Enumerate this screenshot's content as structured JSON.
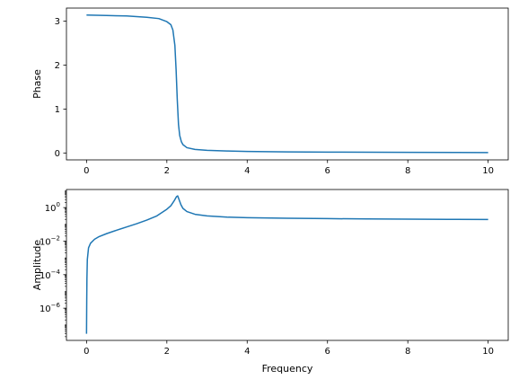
{
  "chart_data": [
    {
      "type": "line",
      "xlabel": "",
      "ylabel": "Phase",
      "xlim": [
        -0.5,
        10.5
      ],
      "ylim": [
        -0.157,
        3.299
      ],
      "yscale": "linear",
      "grid": false,
      "color": "#1f77b4",
      "xticks": [
        0,
        2,
        4,
        6,
        8,
        10
      ],
      "xtick_labels": [
        "0",
        "2",
        "4",
        "6",
        "8",
        "10"
      ],
      "yticks": [
        0,
        1,
        2,
        3
      ],
      "ytick_labels": [
        "0",
        "1",
        "2",
        "3"
      ],
      "series": [
        {
          "x": [
            0,
            0.5,
            1.0,
            1.5,
            1.8,
            2.0,
            2.1,
            2.15,
            2.2,
            2.23,
            2.26,
            2.29,
            2.32,
            2.36,
            2.4,
            2.5,
            2.7,
            3.0,
            3.5,
            4.0,
            5.0,
            6.0,
            8.0,
            10.0
          ],
          "y": [
            3.14,
            3.13,
            3.12,
            3.09,
            3.06,
            2.99,
            2.92,
            2.8,
            2.45,
            1.9,
            1.2,
            0.65,
            0.4,
            0.26,
            0.19,
            0.12,
            0.08,
            0.06,
            0.045,
            0.035,
            0.025,
            0.02,
            0.015,
            0.01
          ]
        }
      ]
    },
    {
      "type": "line",
      "xlabel": "Frequency",
      "ylabel": "Amplitude",
      "xlim": [
        -0.5,
        10.5
      ],
      "ylim": [
        1.2e-08,
        12
      ],
      "yscale": "log",
      "grid": false,
      "color": "#1f77b4",
      "xticks": [
        0,
        2,
        4,
        6,
        8,
        10
      ],
      "xtick_labels": [
        "0",
        "2",
        "4",
        "6",
        "8",
        "10"
      ],
      "yticks": [
        1e-06,
        0.0001,
        0.01,
        1
      ],
      "ytick_labels": [
        {
          "base": "10",
          "exp": "−6"
        },
        {
          "base": "10",
          "exp": "−4"
        },
        {
          "base": "10",
          "exp": "−2"
        },
        {
          "base": "10",
          "exp": "0"
        }
      ],
      "series": [
        {
          "x": [
            0,
            0.005,
            0.01,
            0.02,
            0.05,
            0.1,
            0.2,
            0.3,
            0.5,
            0.75,
            1.0,
            1.25,
            1.5,
            1.75,
            2.0,
            2.1,
            2.18,
            2.24,
            2.27,
            2.3,
            2.35,
            2.4,
            2.5,
            2.7,
            3.0,
            3.5,
            4.0,
            5.0,
            6.0,
            7.0,
            8.0,
            9.0,
            10.0
          ],
          "y": [
            3e-08,
            3e-06,
            6e-05,
            0.0008,
            0.004,
            0.0075,
            0.013,
            0.018,
            0.028,
            0.045,
            0.07,
            0.11,
            0.18,
            0.32,
            0.8,
            1.3,
            2.5,
            4.5,
            5.0,
            3.2,
            1.5,
            0.9,
            0.58,
            0.4,
            0.32,
            0.27,
            0.25,
            0.23,
            0.22,
            0.21,
            0.205,
            0.2,
            0.195
          ]
        }
      ]
    }
  ]
}
